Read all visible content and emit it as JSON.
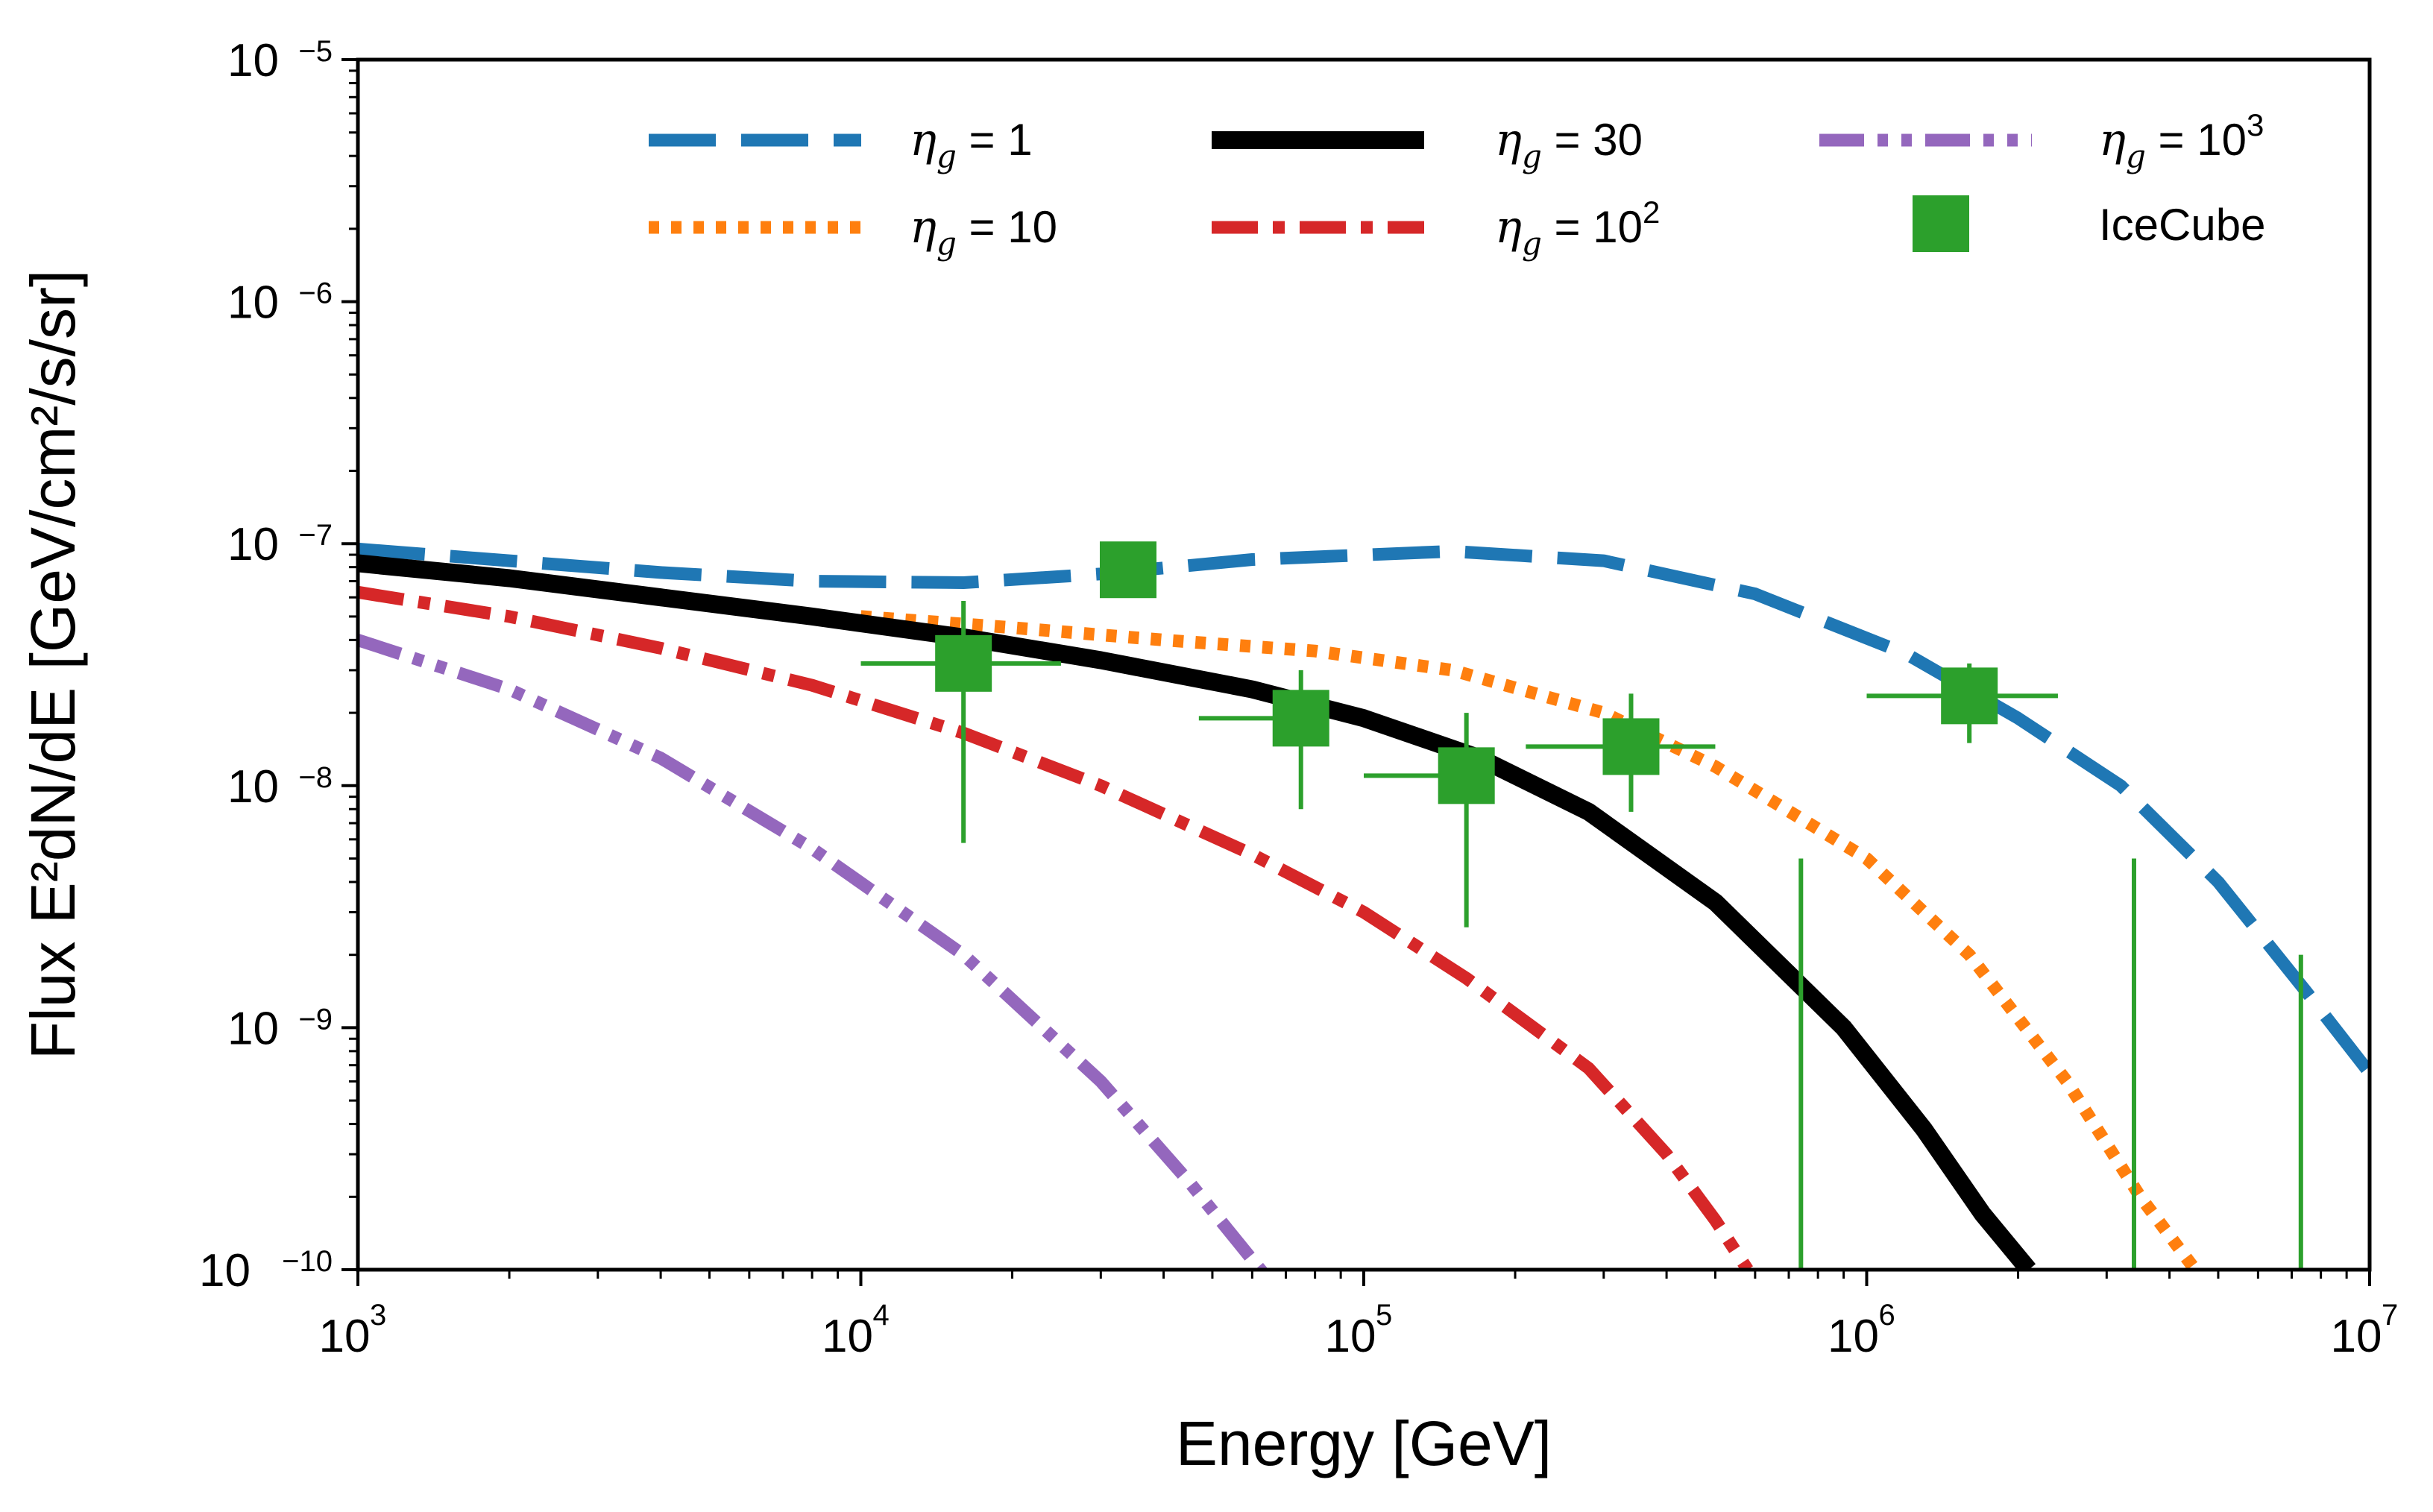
{
  "chart_data": {
    "type": "line",
    "xlabel": "Energy [GeV]",
    "ylabel": "Flux E²dN/dE [GeV/cm²/s/sr]",
    "xscale": "log",
    "yscale": "log",
    "xlim": [
      1000,
      10000000
    ],
    "ylim": [
      1e-10,
      1e-05
    ],
    "grid": false,
    "legend": "top",
    "x_ticks": [
      {
        "base": "10",
        "exp": "3",
        "value": 1000
      },
      {
        "base": "10",
        "exp": "4",
        "value": 10000
      },
      {
        "base": "10",
        "exp": "5",
        "value": 100000
      },
      {
        "base": "10",
        "exp": "6",
        "value": 1000000
      },
      {
        "base": "10",
        "exp": "7",
        "value": 10000000
      }
    ],
    "y_ticks": [
      {
        "base": "10",
        "exp": "−10",
        "value": 1e-10
      },
      {
        "base": "10",
        "exp": "−9",
        "value": 1e-09
      },
      {
        "base": "10",
        "exp": "−8",
        "value": 1e-08
      },
      {
        "base": "10",
        "exp": "−7",
        "value": 1e-07
      },
      {
        "base": "10",
        "exp": "−6",
        "value": 1e-06
      },
      {
        "base": "10",
        "exp": "−5",
        "value": 1e-05
      }
    ],
    "series": [
      {
        "name": "η_g = 1",
        "label_sym": "η",
        "label_sub": "g",
        "label_eq": " = 1",
        "label_sup": "",
        "color": "#1f77b4",
        "style": "dashed",
        "x": [
          1000,
          2000,
          4000,
          8000,
          16000,
          30000,
          60000,
          150000,
          300000,
          600000,
          1200000,
          2000000,
          3200000,
          5000000,
          7500000,
          10000000
        ],
        "y": [
          9.5e-08,
          8.5e-08,
          7.6e-08,
          7e-08,
          6.9e-08,
          7.5e-08,
          8.6e-08,
          9.3e-08,
          8.5e-08,
          6.2e-08,
          3.5e-08,
          1.9e-08,
          1e-08,
          4e-09,
          1.4e-09,
          6.5e-10
        ]
      },
      {
        "name": "η_g = 10",
        "label_sym": "η",
        "label_sub": "g",
        "label_eq": " = 10",
        "label_sup": "",
        "color": "#ff7f0e",
        "style": "dotted",
        "x": [
          10000,
          20000,
          40000,
          80000,
          150000,
          300000,
          500000,
          1000000,
          1600000,
          2500000,
          3500000,
          4500000
        ],
        "y": [
          5e-08,
          4.5e-08,
          4e-08,
          3.6e-08,
          3e-08,
          2e-08,
          1.2e-08,
          5e-09,
          2e-09,
          6e-10,
          2e-10,
          1e-10
        ]
      },
      {
        "name": "η_g = 30",
        "label_sym": "η",
        "label_sub": "g",
        "label_eq": " = 30",
        "label_sup": "",
        "color": "#000000",
        "style": "solid",
        "x": [
          1000,
          2000,
          4000,
          8000,
          16000,
          30000,
          60000,
          100000,
          170000,
          280000,
          500000,
          900000,
          1300000,
          1700000,
          2100000
        ],
        "y": [
          8.3e-08,
          7.2e-08,
          6e-08,
          5e-08,
          4.1e-08,
          3.3e-08,
          2.5e-08,
          1.9e-08,
          1.3e-08,
          7.8e-09,
          3.3e-09,
          1e-09,
          3.8e-10,
          1.7e-10,
          1e-10
        ]
      },
      {
        "name": "η_g = 10^2",
        "label_sym": "η",
        "label_sub": "g",
        "label_eq": " = 10",
        "label_sup": "2",
        "color": "#d62728",
        "style": "dashdot",
        "x": [
          1000,
          2000,
          4000,
          8000,
          16000,
          30000,
          60000,
          100000,
          160000,
          280000,
          400000,
          500000,
          580000
        ],
        "y": [
          6.3e-08,
          5e-08,
          3.7e-08,
          2.6e-08,
          1.65e-08,
          1e-08,
          5.2e-09,
          3e-09,
          1.6e-09,
          6.8e-10,
          3e-10,
          1.6e-10,
          1e-10
        ]
      },
      {
        "name": "η_g = 10^3",
        "label_sym": "η",
        "label_sub": "g",
        "label_eq": " = 10",
        "label_sup": "3",
        "color": "#9467bd",
        "style": "dashdotdot",
        "x": [
          1000,
          2000,
          4000,
          8000,
          16000,
          30000,
          45000,
          60000,
          65000
        ],
        "y": [
          4e-08,
          2.5e-08,
          1.3e-08,
          5.5e-09,
          2e-09,
          6e-10,
          2.3e-10,
          1.1e-10,
          9e-11
        ]
      }
    ],
    "icecube": {
      "name": "IceCube",
      "color": "#2ca02c",
      "points": [
        {
          "x": 16000,
          "y": 3.2e-08,
          "x_lo": 10000,
          "x_hi": 25000,
          "y_lo": 5.8e-09,
          "y_hi": 5.8e-08
        },
        {
          "x": 34000,
          "y": 7.8e-08,
          "x_lo": 34000,
          "x_hi": 34000,
          "y_lo": 7.8e-08,
          "y_hi": 7.8e-08
        },
        {
          "x": 75000,
          "y": 1.9e-08,
          "x_lo": 47000,
          "x_hi": 75000,
          "y_lo": 8e-09,
          "y_hi": 3e-08
        },
        {
          "x": 160000,
          "y": 1.1e-08,
          "x_lo": 100000,
          "x_hi": 180000,
          "y_lo": 2.6e-09,
          "y_hi": 2e-08
        },
        {
          "x": 340000,
          "y": 1.45e-08,
          "x_lo": 210000,
          "x_hi": 500000,
          "y_lo": 7.8e-09,
          "y_hi": 2.4e-08
        },
        {
          "x": 1600000,
          "y": 2.35e-08,
          "x_lo": 1000000,
          "x_hi": 2400000,
          "y_lo": 1.5e-08,
          "y_hi": 3.2e-08
        }
      ],
      "upper_limits": [
        {
          "x": 740000,
          "y": 5e-09
        },
        {
          "x": 3400000,
          "y": 5e-09
        },
        {
          "x": 7300000,
          "y": 2e-09
        }
      ]
    }
  }
}
